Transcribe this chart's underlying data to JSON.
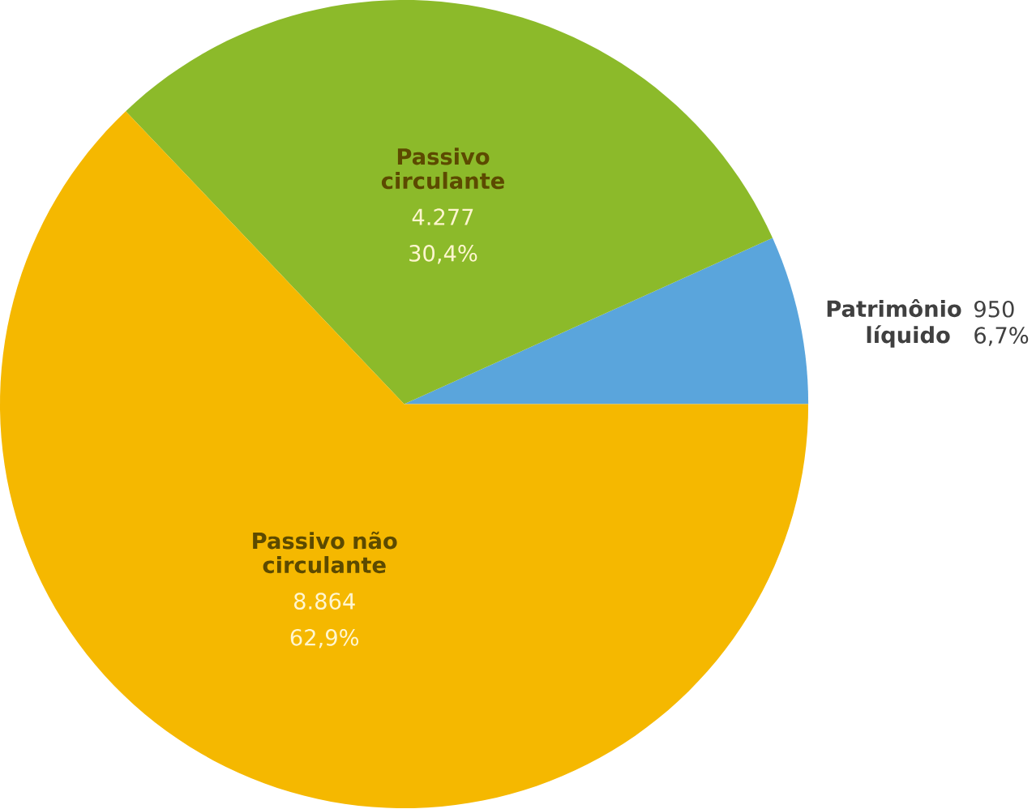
{
  "chart_data": {
    "type": "pie",
    "categories": [
      "Patrimônio líquido",
      "Passivo circulante",
      "Passivo não circulante"
    ],
    "values": [
      950,
      4277,
      8864
    ],
    "colors": [
      "#5aa5dc",
      "#8cba2a",
      "#f5b800"
    ],
    "value_labels": [
      "950",
      "4.277",
      "8.864"
    ],
    "annotations": [
      "6,7%",
      "30,4%",
      "62,9%"
    ]
  }
}
